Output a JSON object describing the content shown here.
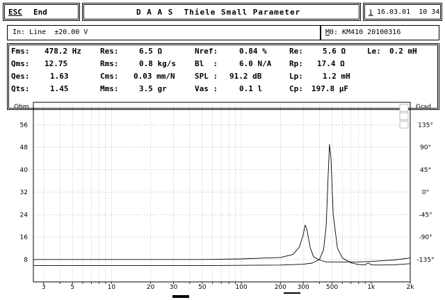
{
  "header": {
    "esc_key": "ESC",
    "end_label": "End",
    "title": "D A A S  Thiele Small Parameter",
    "info_key": "i",
    "datetime": "16.03.01  10 34"
  },
  "input_bar": {
    "input_label": "In: Line  ±20.00 V",
    "memory_key": "M",
    "memory_value": "0: KM410 20100316"
  },
  "params": {
    "row1": [
      {
        "label": "Fms:",
        "value": "478.2 Hz"
      },
      {
        "label": "Res:",
        "value": "6.5 Ω"
      },
      {
        "label": "Nref:",
        "value": "0.84 %"
      },
      {
        "label": "Re:",
        "value": "5.6 Ω"
      },
      {
        "label": "Le:",
        "value": "0.2 mH"
      }
    ],
    "row2": [
      {
        "label": "Qms:",
        "value": "12.75"
      },
      {
        "label": "Rms:",
        "value": "0.8 kg/s"
      },
      {
        "label": "Bl  :",
        "value": "6.0 N/A"
      },
      {
        "label": "Rp:",
        "value": "17.4 Ω"
      }
    ],
    "row3": [
      {
        "label": "Qes:",
        "value": "1.63"
      },
      {
        "label": "Cms:",
        "value": "0.03 mm/N"
      },
      {
        "label": "SPL :",
        "value": "91.2 dB"
      },
      {
        "label": "Lp:",
        "value": "1.2 mH"
      }
    ],
    "row4": [
      {
        "label": "Qts:",
        "value": "1.45"
      },
      {
        "label": "Mms:",
        "value": "3.5 gr"
      },
      {
        "label": "Vas :",
        "value": "0.1 l"
      },
      {
        "label": "Cp:",
        "value": "197.8 μF"
      }
    ]
  },
  "chart_data": {
    "type": "line",
    "left_axis_unit": "Ohm",
    "right_axis_unit": "Grad",
    "left_ticks": [
      "56",
      "48",
      "40",
      "32",
      "24",
      "16",
      "8"
    ],
    "left_tick_values": [
      56,
      48,
      40,
      32,
      24,
      16,
      8
    ],
    "right_ticks": [
      "135°",
      "90°",
      "45°",
      "0°",
      "-45°",
      "-90°",
      "-135°"
    ],
    "right_tick_values": [
      135,
      90,
      45,
      0,
      -45,
      -90,
      -135
    ],
    "x_ticks": [
      "3",
      "5",
      "10",
      "20",
      "30",
      "50",
      "100",
      "200",
      "300",
      "500",
      "1k",
      "2k"
    ],
    "x_tick_values": [
      3,
      5,
      10,
      20,
      30,
      50,
      100,
      200,
      300,
      500,
      1000,
      2000
    ],
    "x_scale": "log",
    "xlim": [
      2.5,
      2000
    ],
    "ylim_left": [
      0,
      64
    ],
    "ylim_right": [
      -180,
      180
    ],
    "grid": true,
    "series": [
      {
        "axis": "left",
        "x": [
          2.5,
          3,
          5,
          10,
          20,
          50,
          100,
          200,
          300,
          350,
          400,
          430,
          450,
          470,
          478,
          490,
          510,
          550,
          600,
          700,
          800,
          900,
          950,
          1000,
          1100,
          1500,
          2000
        ],
        "y": [
          5.8,
          5.8,
          5.8,
          5.8,
          5.8,
          5.8,
          5.9,
          6.0,
          6.3,
          6.7,
          8.0,
          11.5,
          20.0,
          42.0,
          49.0,
          44.0,
          24.0,
          12.0,
          8.5,
          6.8,
          6.2,
          6.1,
          6.8,
          6.1,
          6.0,
          6.1,
          6.5
        ]
      },
      {
        "axis": "right",
        "x": [
          2.5,
          3,
          5,
          10,
          20,
          50,
          100,
          200,
          250,
          280,
          300,
          310,
          320,
          340,
          360,
          400,
          450,
          500,
          600,
          800,
          1000,
          1500,
          2000
        ],
        "y": [
          -135,
          -135,
          -135,
          -135,
          -135,
          -135,
          -134,
          -131,
          -125,
          -110,
          -85,
          -66,
          -75,
          -112,
          -130,
          -136,
          -140,
          -140,
          -140,
          -140,
          -139,
          -136,
          -132
        ]
      }
    ]
  }
}
